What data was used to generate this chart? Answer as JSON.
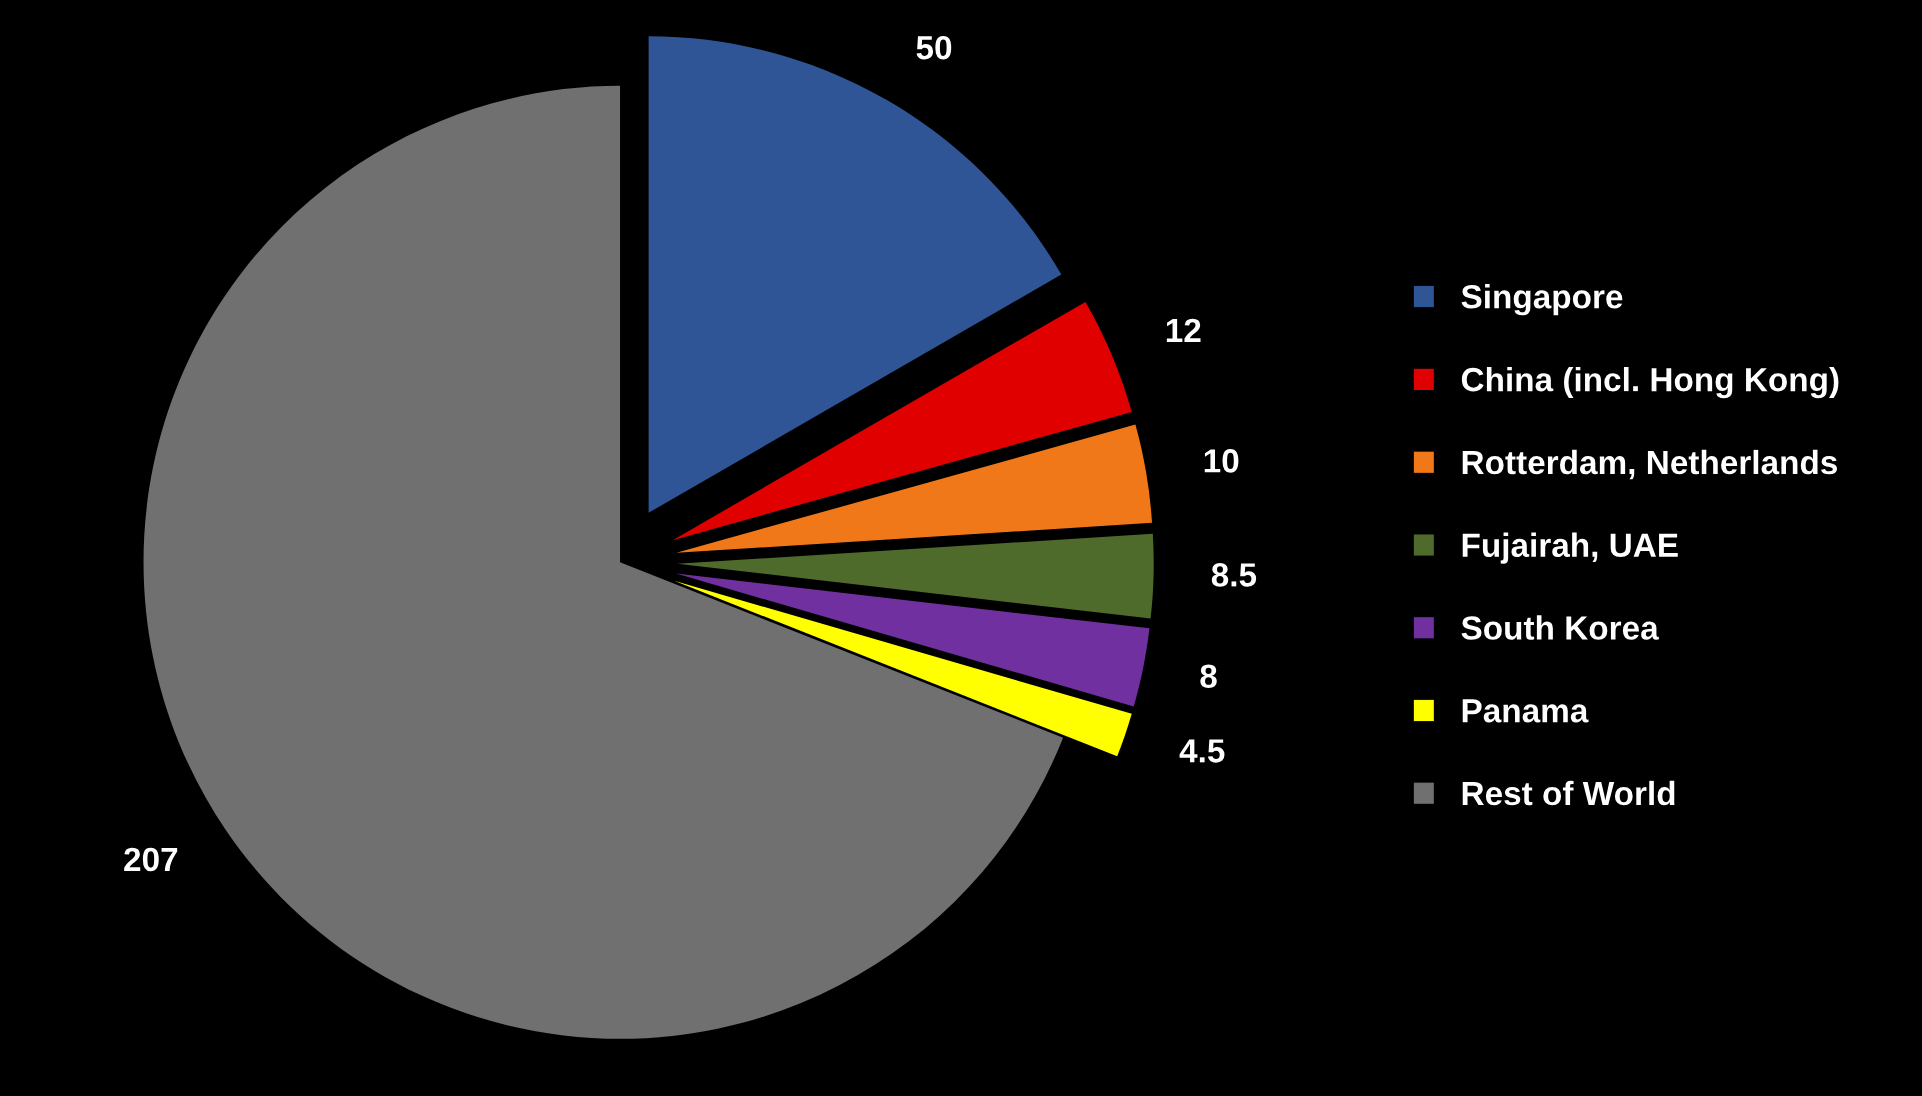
{
  "chart_data": {
    "type": "pie",
    "categories": [
      "Singapore",
      "China (incl. Hong Kong)",
      "Rotterdam, Netherlands",
      "Fujairah, UAE",
      "South Korea",
      "Panama",
      "Rest of World"
    ],
    "values": [
      50,
      12,
      10,
      8.5,
      8,
      4.5,
      207
    ],
    "colors": [
      "#2f5597",
      "#e00000",
      "#f07818",
      "#4f6b2c",
      "#7030a0",
      "#ffff00",
      "#707070"
    ],
    "data_labels": true,
    "legend": "right"
  }
}
